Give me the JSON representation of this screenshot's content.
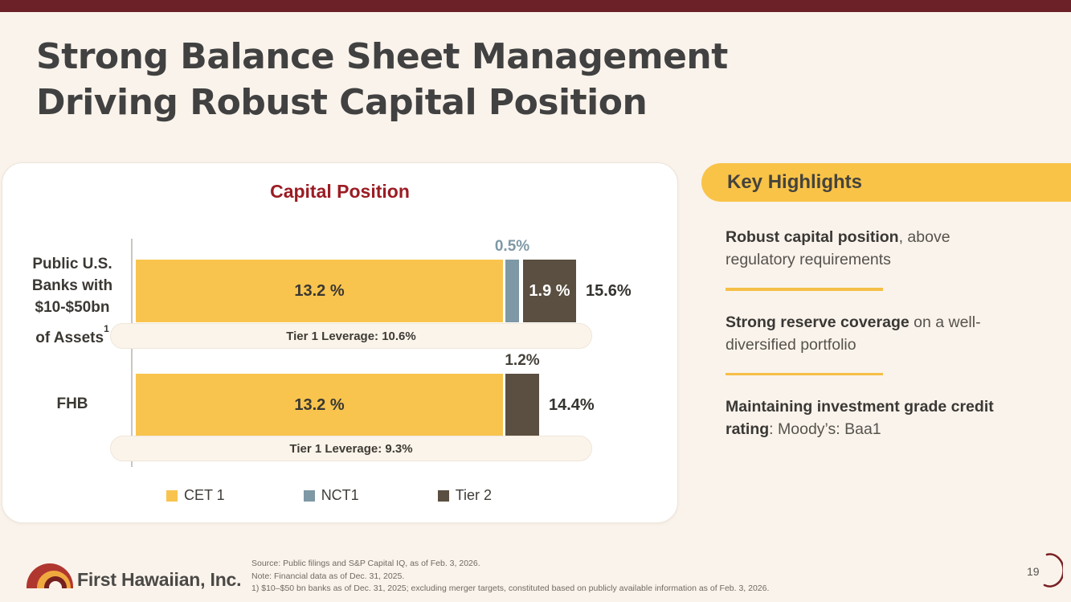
{
  "colors": {
    "top_bar": "#6B2127",
    "background": "#FAF3EB",
    "card_bg": "#FFFFFF",
    "title_text": "#414141",
    "chart_title": "#9B1C23",
    "cet1": "#F8C44E",
    "nct1": "#7E98A6",
    "tier2": "#5A4F40",
    "highlight_pill": "#F9C348",
    "leverage_pill_bg": "#FBF4EA",
    "page_arc": "#7A2125"
  },
  "header": {
    "title_line1": "Strong Balance Sheet Management",
    "title_line2": "Driving Robust Capital Position"
  },
  "chart_data": {
    "type": "bar",
    "orientation": "horizontal",
    "stacked": true,
    "title": "Capital Position",
    "unit": "%",
    "xlim": [
      0,
      16.5
    ],
    "legend_position": "bottom",
    "series_names": [
      "CET 1",
      "NCT1",
      "Tier 2"
    ],
    "bars": [
      {
        "category": "Public U.S. Banks with $10-$50bn of Assets",
        "label_lines": [
          "Public U.S.",
          "Banks with",
          "$10-$50bn",
          "of Assets"
        ],
        "label_sup": "1",
        "segments": [
          {
            "series": "CET 1",
            "value": 13.2,
            "label": "13.2 %",
            "label_pos": "inside",
            "label_style": "dark"
          },
          {
            "series": "NCT1",
            "value": 0.5,
            "label": "0.5%",
            "label_pos": "above",
            "label_style": "nct1"
          },
          {
            "series": "Tier 2",
            "value": 1.9,
            "label": "1.9 %",
            "label_pos": "inside",
            "label_style": "white"
          }
        ],
        "total": "15.6%",
        "footnote": "Tier 1 Leverage: 10.6%"
      },
      {
        "category": "FHB",
        "label_lines": [
          "FHB"
        ],
        "label_sup": "",
        "segments": [
          {
            "series": "CET 1",
            "value": 13.2,
            "label": "13.2 %",
            "label_pos": "inside",
            "label_style": "dark"
          },
          {
            "series": "Tier 2",
            "value": 1.2,
            "label": "1.2%",
            "label_pos": "above",
            "label_style": "dark"
          }
        ],
        "total": "14.4%",
        "footnote": "Tier 1 Leverage: 9.3%"
      }
    ],
    "legend": [
      {
        "label": "CET 1",
        "series": "CET 1"
      },
      {
        "label": "NCT1",
        "series": "NCT1"
      },
      {
        "label": "Tier 2",
        "series": "Tier 2"
      }
    ]
  },
  "highlights": {
    "heading": "Key Highlights",
    "items": [
      {
        "bold": "Robust capital position",
        "rest": ", above regulatory requirements"
      },
      {
        "bold": "Strong reserve coverage",
        "rest": " on a well-diversified portfolio"
      },
      {
        "bold": "Maintaining investment grade credit rating",
        "rest": ": Moody’s: Baa1"
      }
    ]
  },
  "footer": {
    "logo_text": "First Hawaiian, Inc.",
    "source_lines": [
      "Source: Public filings and S&P Capital IQ, as of Feb. 3, 2026.",
      "Note: Financial data as of Dec. 31, 2025.",
      "1) $10–$50 bn banks as of Dec. 31, 2025; excluding merger targets, constituted based on publicly available information as of Feb. 3, 2026."
    ],
    "page_number": "19"
  }
}
